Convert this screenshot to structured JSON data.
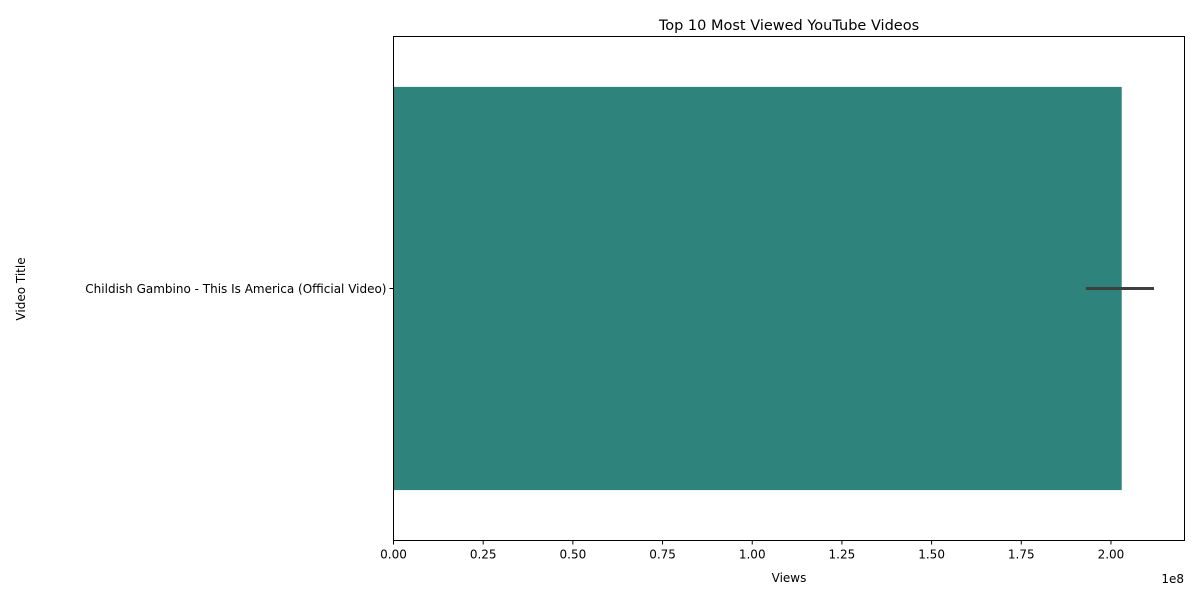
{
  "chart_data": {
    "type": "bar",
    "orientation": "horizontal",
    "title": "Top 10 Most Viewed YouTube Videos",
    "xlabel": "Views",
    "ylabel": "Video Title",
    "offset_text": "1e8",
    "categories": [
      "Childish Gambino - This Is America (Official Video)"
    ],
    "series": [
      {
        "values": [
          203000000
        ],
        "error_low": [
          193000000
        ],
        "error_high": [
          212000000
        ],
        "color": "#2e837c"
      }
    ],
    "xlim": [
      0,
      220500000
    ],
    "xticks": [
      0,
      25000000,
      50000000,
      75000000,
      100000000,
      125000000,
      150000000,
      175000000,
      200000000
    ],
    "xtick_labels": [
      "0.00",
      "0.25",
      "0.50",
      "0.75",
      "1.00",
      "1.25",
      "1.50",
      "1.75",
      "2.00"
    ],
    "grid": false,
    "legend": "none"
  }
}
